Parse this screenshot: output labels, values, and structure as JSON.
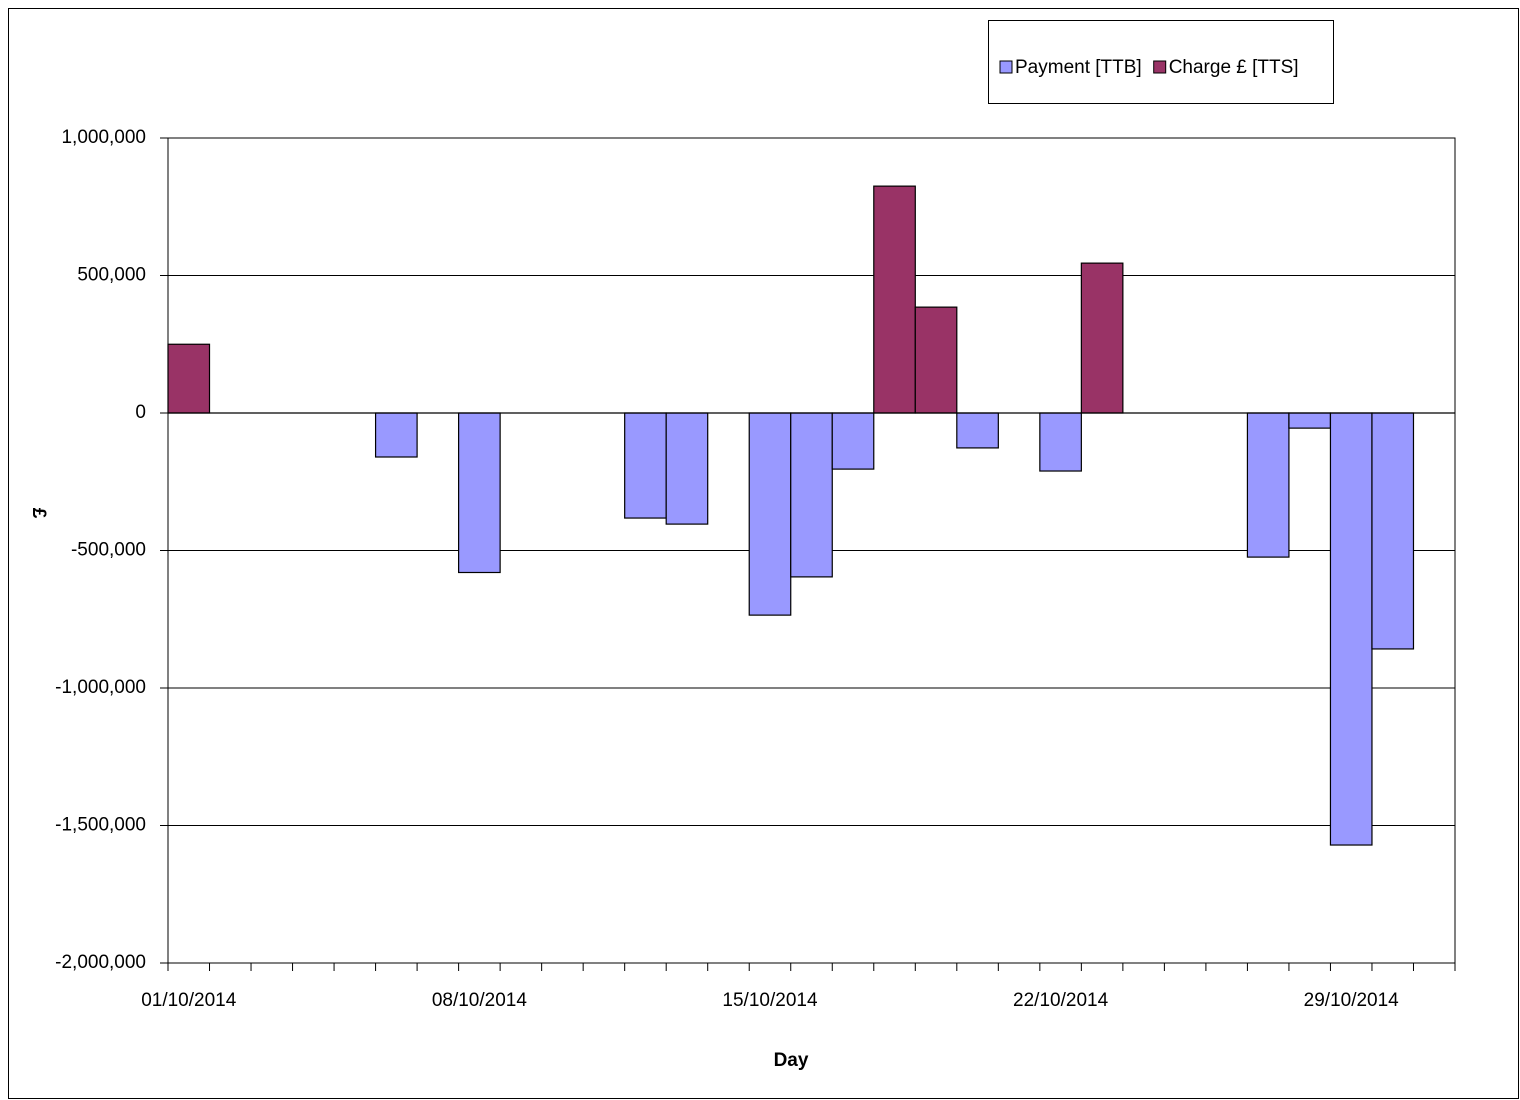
{
  "chart_data": {
    "type": "bar",
    "x_label": "Day",
    "y_label": "£",
    "categories": [
      "01/10/2014",
      null,
      null,
      null,
      null,
      null,
      null,
      "08/10/2014",
      null,
      null,
      null,
      null,
      null,
      null,
      "15/10/2014",
      null,
      null,
      null,
      null,
      null,
      null,
      "22/10/2014",
      null,
      null,
      null,
      null,
      null,
      null,
      "29/10/2014",
      null,
      null
    ],
    "series": [
      {
        "name": "Payment [TTB]",
        "color": "#9999ff",
        "values": [
          null,
          null,
          null,
          null,
          null,
          -160000,
          null,
          -580000,
          null,
          null,
          null,
          -382000,
          -404000,
          null,
          -735000,
          -596000,
          -204000,
          null,
          null,
          -127000,
          null,
          -211000,
          null,
          null,
          null,
          null,
          -524000,
          -55000,
          -1571000,
          -858000,
          null
        ]
      },
      {
        "name": "Charge £ [TTS]",
        "color": "#993366",
        "values": [
          250000,
          null,
          null,
          null,
          null,
          null,
          null,
          null,
          null,
          null,
          null,
          null,
          null,
          null,
          null,
          null,
          null,
          825000,
          385000,
          null,
          null,
          null,
          545000,
          null,
          null,
          null,
          null,
          null,
          null,
          null,
          null
        ]
      }
    ],
    "ylim": [
      -2000000,
      1000000
    ],
    "yticks": [
      {
        "value": -2000000,
        "label": "-2,000,000"
      },
      {
        "value": -1500000,
        "label": "-1,500,000"
      },
      {
        "value": -1000000,
        "label": "-1,000,000"
      },
      {
        "value": -500000,
        "label": "-500,000"
      },
      0,
      {
        "value": 500000,
        "label": "500,000"
      },
      {
        "value": 1000000,
        "label": "1,000,000"
      }
    ],
    "grid": true,
    "legend": "top-right"
  }
}
